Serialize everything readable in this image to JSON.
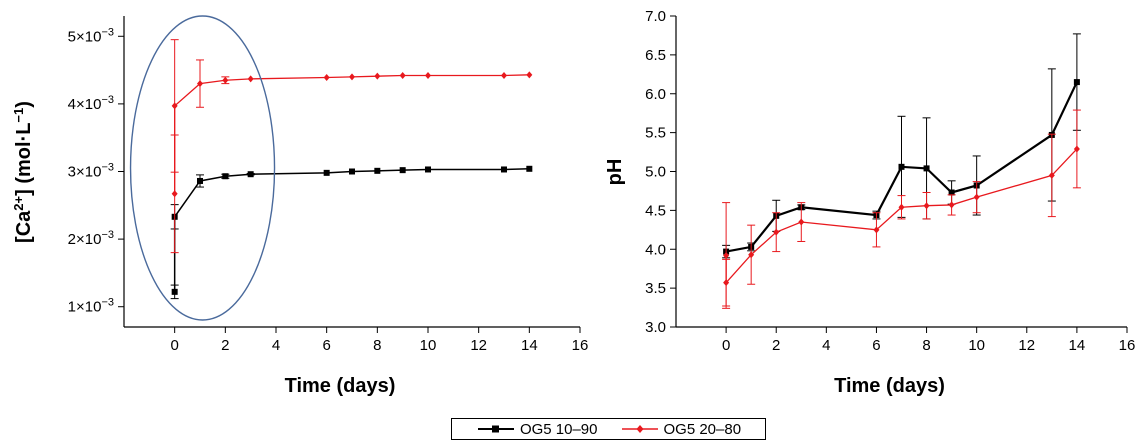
{
  "chart_data": [
    {
      "type": "line",
      "xlabel": "Time (days)",
      "ylabel": "[Ca2+] (mol·L−1)",
      "ylabel_parts": {
        "pre": "[Ca",
        "sup1": "2+",
        "mid": "] (mol·L",
        "sup2": "−1",
        "post": ")"
      },
      "xlim": [
        -2,
        16
      ],
      "ylim": [
        0.0007,
        0.0053
      ],
      "xticks": [
        0,
        2,
        4,
        6,
        8,
        10,
        12,
        14,
        16
      ],
      "yticks": [
        {
          "value": 0.001,
          "mantissa": "1",
          "exp": "−3"
        },
        {
          "value": 0.002,
          "mantissa": "2",
          "exp": "−3"
        },
        {
          "value": 0.003,
          "mantissa": "3",
          "exp": "−3"
        },
        {
          "value": 0.004,
          "mantissa": "4",
          "exp": "−3"
        },
        {
          "value": 0.005,
          "mantissa": "5",
          "exp": "−3"
        }
      ],
      "annotation": "ellipse around days 0–3",
      "series": [
        {
          "name": "OG5 10–90",
          "color": "#000000",
          "marker": "square",
          "x": [
            0,
            0,
            1,
            2,
            3,
            6,
            7,
            8,
            9,
            10,
            13,
            14
          ],
          "y": [
            0.00122,
            0.00233,
            0.00286,
            0.00293,
            0.00296,
            0.00298,
            0.003,
            0.00301,
            0.00302,
            0.00303,
            0.00303,
            0.00304
          ],
          "err": [
            0.0001,
            0.00018,
            9e-05,
            3e-05,
            1e-05,
            0,
            0,
            0,
            0,
            0,
            0,
            0
          ]
        },
        {
          "name": "OG5 20–80",
          "color": "#e8191e",
          "marker": "diamond",
          "x": [
            0,
            0,
            1,
            2,
            3,
            6,
            7,
            8,
            9,
            10,
            13,
            14
          ],
          "y": [
            0.00267,
            0.00397,
            0.0043,
            0.00435,
            0.00437,
            0.00439,
            0.0044,
            0.00441,
            0.00442,
            0.00442,
            0.00442,
            0.00443
          ],
          "err": [
            0.00087,
            0.00098,
            0.00035,
            5e-05,
            0,
            0,
            0,
            0,
            0,
            0,
            0,
            0
          ]
        }
      ]
    },
    {
      "type": "line",
      "xlabel": "Time (days)",
      "ylabel": "pH",
      "xlim": [
        -2,
        16
      ],
      "ylim": [
        3.0,
        7.0
      ],
      "xticks": [
        0,
        2,
        4,
        6,
        8,
        10,
        12,
        14,
        16
      ],
      "yticks": [
        "3.0",
        "3.5",
        "4.0",
        "4.5",
        "5.0",
        "5.5",
        "6.0",
        "6.5",
        "7.0"
      ],
      "series": [
        {
          "name": "OG5 10–90",
          "color": "#000000",
          "marker": "square",
          "x": [
            0,
            1,
            2,
            3,
            6,
            7,
            8,
            9,
            10,
            13,
            14
          ],
          "y": [
            3.97,
            4.03,
            4.43,
            4.54,
            4.44,
            5.06,
            5.04,
            4.73,
            4.82,
            5.47,
            6.15
          ],
          "err": [
            0.08,
            0.05,
            0.2,
            0.03,
            0.05,
            0.65,
            0.65,
            0.15,
            0.38,
            0.85,
            0.62
          ]
        },
        {
          "name": "OG5 20–80",
          "color": "#e8191e",
          "marker": "diamond",
          "x": [
            0,
            0,
            1,
            2,
            3,
            6,
            7,
            8,
            9,
            10,
            13,
            14
          ],
          "y": [
            3.92,
            3.57,
            3.93,
            4.22,
            4.35,
            4.25,
            4.54,
            4.56,
            4.57,
            4.67,
            4.95,
            5.29
          ],
          "err": [
            0.68,
            0.3,
            0.38,
            0.25,
            0.25,
            0.22,
            0.15,
            0.17,
            0.13,
            0.2,
            0.53,
            0.5
          ]
        }
      ]
    }
  ],
  "legend": [
    {
      "name": "OG5 10–90",
      "color": "#000000",
      "marker": "square"
    },
    {
      "name": "OG5 20–80",
      "color": "#e8191e",
      "marker": "diamond"
    }
  ]
}
